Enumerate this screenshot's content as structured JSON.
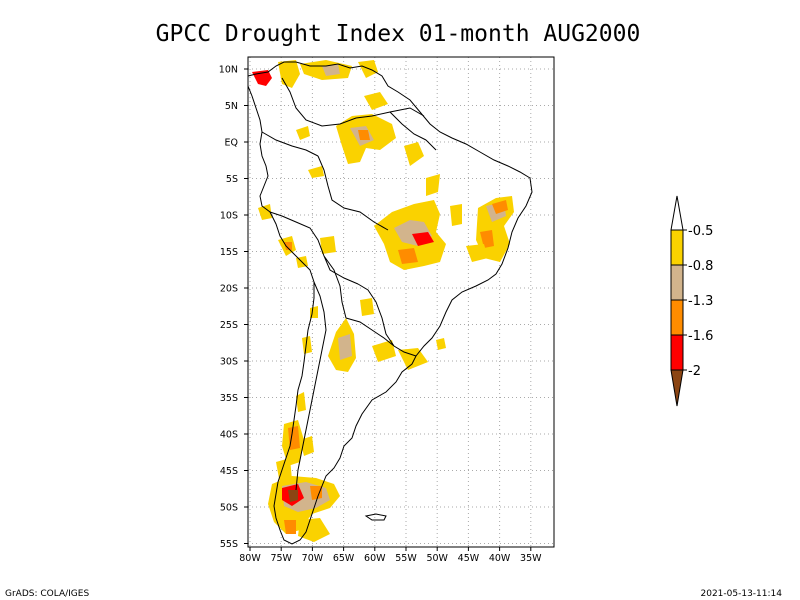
{
  "title": "GPCC Drought Index 01-month AUG2000",
  "map": {
    "lat_labels": [
      "10N",
      "5N",
      "EQ",
      "5S",
      "10S",
      "15S",
      "20S",
      "25S",
      "30S",
      "35S",
      "40S",
      "45S",
      "50S",
      "55S"
    ],
    "lon_labels": [
      "80W",
      "75W",
      "70W",
      "65W",
      "60W",
      "55W",
      "50W",
      "45W",
      "40W",
      "35W"
    ],
    "grid": true,
    "gridline_style": "dotted"
  },
  "colorbar": {
    "labels": [
      "-0.5",
      "-0.8",
      "-1.3",
      "-1.6",
      "-2"
    ],
    "colors": [
      "#fad200",
      "#d2b48c",
      "#ff8c00",
      "#ff0000",
      "#8b4513"
    ]
  },
  "footer": {
    "left": "GrADS: COLA/IGES",
    "right": "2021-05-13-11:14"
  }
}
